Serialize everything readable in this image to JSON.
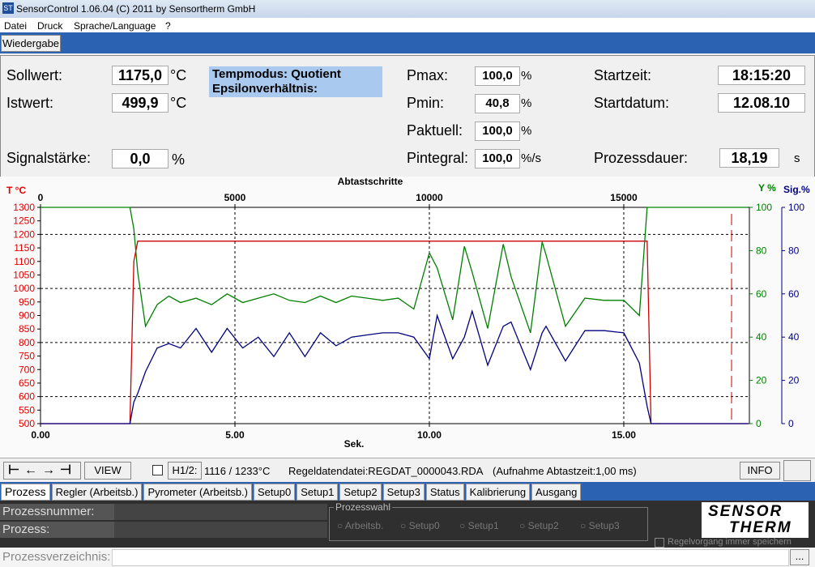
{
  "window": {
    "title": "SensorControl 1.06.04 (C) 2011 by Sensortherm GmbH"
  },
  "menu": [
    "Datei",
    "Druck",
    "Sprache/Language",
    "?"
  ],
  "toolbar": {
    "button": "Wiedergabe"
  },
  "status_panel": {
    "sollwert": {
      "label": "Sollwert:",
      "value": "1175,0",
      "unit": "°C"
    },
    "istwert": {
      "label": "Istwert:",
      "value": "499,9",
      "unit": "°C"
    },
    "signalstaerke": {
      "label": "Signalstärke:",
      "value": "0,0",
      "unit": "%"
    },
    "tempmodus": "Tempmodus: Quotient",
    "epsilon": "Epsilonverhältnis:",
    "pmax": {
      "label": "Pmax:",
      "value": "100,0",
      "unit": "%"
    },
    "pmin": {
      "label": "Pmin:",
      "value": "40,8",
      "unit": "%"
    },
    "paktuell": {
      "label": "Paktuell:",
      "value": "100,0",
      "unit": "%"
    },
    "pintegral": {
      "label": "Pintegral:",
      "value": "100,0",
      "unit": "%/s"
    },
    "startzeit": {
      "label": "Startzeit:",
      "value": "18:15:20"
    },
    "startdatum": {
      "label": "Startdatum:",
      "value": "12.08.10"
    },
    "prozessdauer": {
      "label": "Prozessdauer:",
      "value": "18,19",
      "unit": "s"
    }
  },
  "chart_data": {
    "type": "line",
    "x_label": "Sek.",
    "x2_label": "Abtastschritte",
    "y_label": "T °C",
    "y2_label": "Y %",
    "y3_label": "Sig.%",
    "xlim": [
      0,
      18.23
    ],
    "xticks": [
      {
        "value": 0,
        "label": "0.00"
      },
      {
        "value": 5,
        "label": "5.00"
      },
      {
        "value": 10,
        "label": "10.00"
      },
      {
        "value": 15,
        "label": "15.00"
      }
    ],
    "x2lim": [
      0,
      18230
    ],
    "x2ticks": [
      0,
      5000,
      10000,
      15000
    ],
    "ylim": [
      500,
      1300
    ],
    "yticks": [
      500,
      550,
      600,
      650,
      700,
      750,
      800,
      850,
      900,
      950,
      1000,
      1050,
      1100,
      1150,
      1200,
      1250,
      1300
    ],
    "y2lim": [
      0,
      100
    ],
    "y2ticks": [
      0,
      20,
      40,
      60,
      80,
      100
    ],
    "y3lim": [
      0,
      100
    ],
    "y3ticks": [
      0,
      20,
      40,
      60,
      80,
      100
    ],
    "grid": true,
    "x": [
      0,
      2.3,
      2.4,
      2.5,
      2.7,
      3.0,
      3.3,
      3.6,
      4.0,
      4.4,
      4.8,
      5.2,
      5.6,
      6.0,
      6.4,
      6.8,
      7.2,
      7.6,
      8.0,
      8.4,
      8.8,
      9.2,
      9.6,
      10.0,
      10.2,
      10.6,
      10.9,
      11.1,
      11.5,
      11.9,
      12.1,
      12.6,
      12.9,
      13.0,
      13.5,
      14.0,
      14.5,
      15.0,
      15.4,
      15.6,
      15.7,
      18.2
    ],
    "series": [
      {
        "color": "#cc0000",
        "axis": "y",
        "values": [
          500,
          500,
          1100,
          1175,
          1175,
          1175,
          1175,
          1175,
          1175,
          1175,
          1175,
          1175,
          1175,
          1175,
          1175,
          1175,
          1175,
          1175,
          1175,
          1175,
          1175,
          1175,
          1175,
          1175,
          1175,
          1175,
          1175,
          1175,
          1175,
          1175,
          1175,
          1175,
          1175,
          1175,
          1175,
          1175,
          1175,
          1175,
          1175,
          1175,
          500,
          500
        ]
      },
      {
        "color": "#008000",
        "axis": "y2",
        "values": [
          100,
          100,
          90,
          70,
          45,
          55,
          59,
          56,
          58,
          55,
          60,
          56,
          58,
          60,
          57,
          56,
          59,
          56,
          59,
          58,
          57,
          58,
          53,
          79,
          72,
          48,
          82,
          70,
          44,
          83,
          68,
          42,
          84,
          78,
          45,
          58,
          57,
          57,
          50,
          100,
          100,
          100
        ]
      },
      {
        "color": "#000080",
        "axis": "y3",
        "values": [
          0,
          0,
          10,
          14,
          24,
          35,
          37,
          35,
          44,
          33,
          44,
          35,
          40,
          31,
          42,
          31,
          42,
          36,
          40,
          41,
          42,
          42,
          40,
          30,
          50,
          30,
          40,
          52,
          27,
          45,
          47,
          25,
          42,
          45,
          29,
          43,
          43,
          42,
          28,
          8,
          0,
          0
        ]
      }
    ]
  },
  "controls": {
    "view": "VIEW",
    "h12": "H1/2:",
    "h12_value": "1116 / 1233°C",
    "file": "Regeldatendatei:REGDAT_0000043.RDA",
    "sampling": "(Aufnahme Abtastzeit:1,00 ms)",
    "info": "INFO"
  },
  "tabs": [
    "Prozess",
    "Regler (Arbeitsb.)",
    "Pyrometer (Arbeitsb.)",
    "Setup0",
    "Setup1",
    "Setup2",
    "Setup3",
    "Status",
    "Kalibrierung",
    "Ausgang"
  ],
  "process_panel": {
    "prozessnummer": "Prozessnummer:",
    "prozess": "Prozess:",
    "prozesswahl": "Prozesswahl",
    "options": [
      "Arbeitsb.",
      "Setup0",
      "Setup1",
      "Setup2",
      "Setup3"
    ],
    "logo_top": "SENSOR",
    "logo_bottom": "THERM",
    "save": "Regelvorgang immer speichern",
    "verzeichnis": "Prozessverzeichnis:",
    "browse": "..."
  }
}
